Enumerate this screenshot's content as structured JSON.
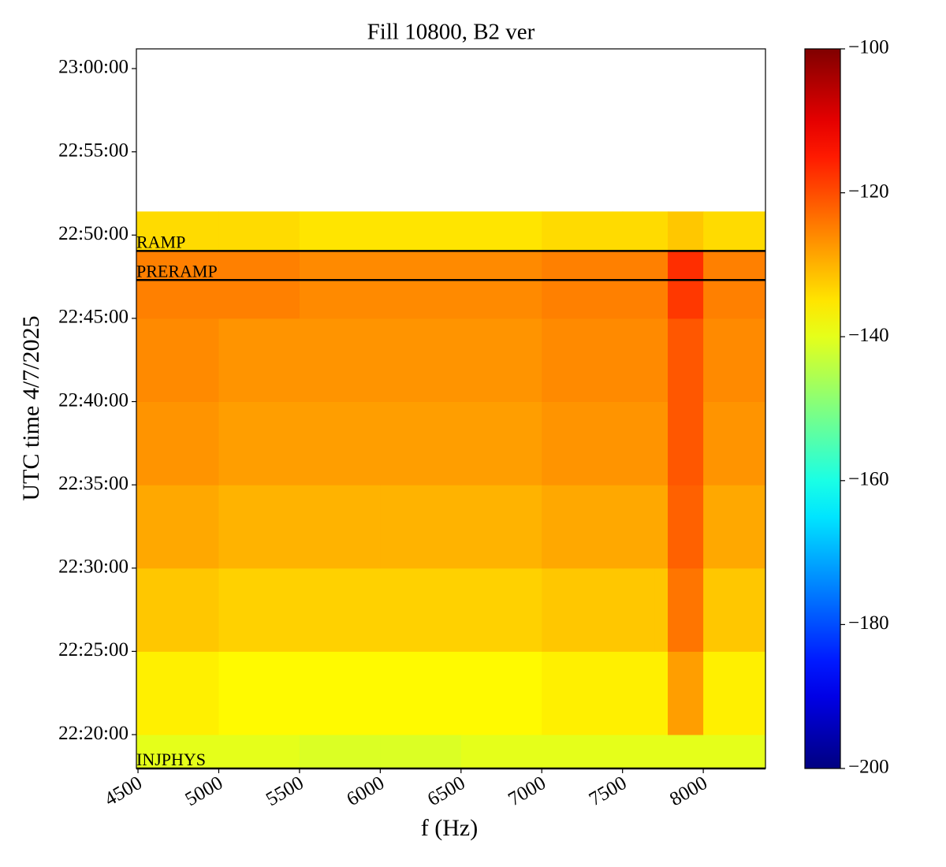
{
  "chart_data": {
    "type": "heatmap",
    "title": "Fill 10800, B2 ver",
    "x_label": "f (Hz)",
    "y_label": "UTC time 4/7/2025",
    "xlim": [
      4490,
      8385
    ],
    "ylim": [
      80278,
      82871
    ],
    "xticks": [
      4500,
      5000,
      5500,
      6000,
      6500,
      7000,
      7500,
      8000
    ],
    "yticks": [
      {
        "value": 80400,
        "label": "22:20:00"
      },
      {
        "value": 80700,
        "label": "22:25:00"
      },
      {
        "value": 81000,
        "label": "22:30:00"
      },
      {
        "value": 81300,
        "label": "22:35:00"
      },
      {
        "value": 81600,
        "label": "22:40:00"
      },
      {
        "value": 81900,
        "label": "22:45:00"
      },
      {
        "value": 82200,
        "label": "22:50:00"
      },
      {
        "value": 82500,
        "label": "22:55:00"
      },
      {
        "value": 82800,
        "label": "23:00:00"
      }
    ],
    "x_bins": [
      4490,
      5000,
      5500,
      6000,
      6500,
      7000,
      7500,
      7700,
      7780,
      8000,
      8385
    ],
    "y_bins": [
      80278,
      80400,
      80700,
      81000,
      81300,
      81600,
      81900,
      82038,
      82143,
      82285
    ],
    "z": [
      [
        -140,
        -140,
        -141,
        -141,
        -140,
        -140,
        -140,
        -140,
        -140,
        -140
      ],
      [
        -136,
        -137,
        -137,
        -137,
        -137,
        -136,
        -136,
        -136,
        -128,
        -136
      ],
      [
        -132,
        -133,
        -133,
        -133,
        -133,
        -132,
        -132,
        -132,
        -124,
        -132
      ],
      [
        -129,
        -130,
        -130,
        -130,
        -130,
        -129,
        -129,
        -129,
        -122,
        -129
      ],
      [
        -127,
        -128,
        -128,
        -128,
        -128,
        -127,
        -127,
        -127,
        -121,
        -127
      ],
      [
        -126,
        -127,
        -127,
        -127,
        -127,
        -126,
        -126,
        -126,
        -121,
        -126
      ],
      [
        -125,
        -125,
        -126,
        -126,
        -126,
        -125,
        -125,
        -125,
        -118,
        -125
      ],
      [
        -125,
        -125,
        -126,
        -126,
        -126,
        -125,
        -125,
        -125,
        -117,
        -125
      ],
      [
        -134,
        -134,
        -135,
        -135,
        -135,
        -134,
        -134,
        -134,
        -132,
        -134
      ]
    ],
    "colormap": "jet",
    "clim": [
      -200,
      -100
    ],
    "cticks": [
      {
        "value": -200,
        "label": "−200"
      },
      {
        "value": -180,
        "label": "−180"
      },
      {
        "value": -160,
        "label": "−160"
      },
      {
        "value": -140,
        "label": "−140"
      },
      {
        "value": -120,
        "label": "−120"
      },
      {
        "value": -100,
        "label": "−100"
      }
    ],
    "markers": [
      {
        "label": "RAMP",
        "y": 82143
      },
      {
        "label": "PRERAMP",
        "y": 82038
      },
      {
        "label": "INJPHYS",
        "y": 80278
      }
    ]
  }
}
